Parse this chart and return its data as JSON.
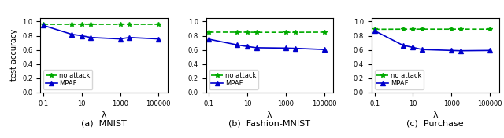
{
  "lambda_values": [
    0.1,
    3,
    10,
    30,
    1000,
    3000,
    100000
  ],
  "subplots": [
    {
      "title": "(a)  MNIST",
      "no_attack": [
        0.965,
        0.965,
        0.965,
        0.965,
        0.965,
        0.965,
        0.965
      ],
      "mpaf": [
        0.945,
        0.82,
        0.8,
        0.775,
        0.755,
        0.775,
        0.755
      ]
    },
    {
      "title": "(b)  Fashion-MNIST",
      "no_attack": [
        0.85,
        0.85,
        0.85,
        0.848,
        0.848,
        0.848,
        0.85
      ],
      "mpaf": [
        0.75,
        0.67,
        0.648,
        0.63,
        0.625,
        0.622,
        0.605
      ]
    },
    {
      "title": "(c)  Purchase",
      "no_attack": [
        0.89,
        0.892,
        0.892,
        0.892,
        0.892,
        0.892,
        0.892
      ],
      "mpaf": [
        0.87,
        0.665,
        0.635,
        0.605,
        0.592,
        0.588,
        0.592
      ]
    }
  ],
  "no_attack_color": "#00aa00",
  "mpaf_color": "#0000cc",
  "no_attack_linestyle": "--",
  "mpaf_linestyle": "-",
  "no_attack_marker": "*",
  "mpaf_marker": "^",
  "ylabel": "test accuracy",
  "xlabel": "λ",
  "ylim": [
    0.0,
    1.05
  ],
  "yticks": [
    0.0,
    0.2,
    0.4,
    0.6,
    0.8,
    1.0
  ],
  "legend_no_attack": "no attack",
  "legend_mpaf": "MPAF",
  "markersize_star": 4,
  "markersize_tri": 4,
  "linewidth": 1.2,
  "title_fontsize": 8,
  "label_fontsize": 7,
  "tick_fontsize": 6,
  "legend_fontsize": 6
}
